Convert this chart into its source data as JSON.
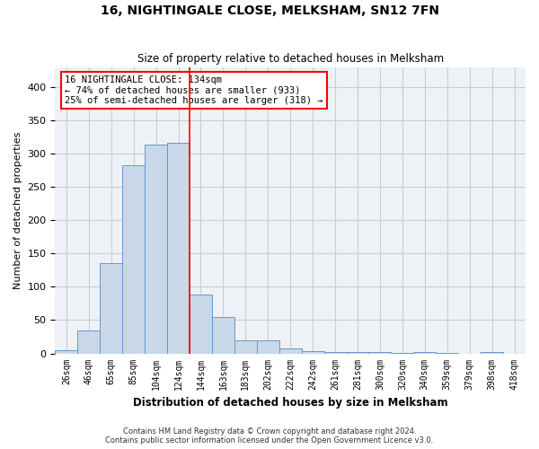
{
  "title": "16, NIGHTINGALE CLOSE, MELKSHAM, SN12 7FN",
  "subtitle": "Size of property relative to detached houses in Melksham",
  "xlabel": "Distribution of detached houses by size in Melksham",
  "ylabel": "Number of detached properties",
  "bin_labels": [
    "26sqm",
    "46sqm",
    "65sqm",
    "85sqm",
    "104sqm",
    "124sqm",
    "144sqm",
    "163sqm",
    "183sqm",
    "202sqm",
    "222sqm",
    "242sqm",
    "261sqm",
    "281sqm",
    "300sqm",
    "320sqm",
    "340sqm",
    "359sqm",
    "379sqm",
    "398sqm",
    "418sqm"
  ],
  "bar_values": [
    5,
    35,
    136,
    283,
    313,
    316,
    89,
    55,
    20,
    20,
    8,
    4,
    2,
    2,
    2,
    1,
    2,
    1,
    0,
    2,
    0
  ],
  "bar_color": "#c8d8e8",
  "bar_edge_color": "#6699cc",
  "vline_x": 5.5,
  "vline_color": "red",
  "annotation_lines": [
    "16 NIGHTINGALE CLOSE: 134sqm",
    "← 74% of detached houses are smaller (933)",
    "25% of semi-detached houses are larger (318) →"
  ],
  "annotation_box_color": "white",
  "annotation_box_edge_color": "red",
  "ylim": [
    0,
    430
  ],
  "yticks": [
    0,
    50,
    100,
    150,
    200,
    250,
    300,
    350,
    400
  ],
  "grid_color": "#cccccc",
  "background_color": "#eef2f7",
  "footer_line1": "Contains HM Land Registry data © Crown copyright and database right 2024.",
  "footer_line2": "Contains public sector information licensed under the Open Government Licence v3.0."
}
